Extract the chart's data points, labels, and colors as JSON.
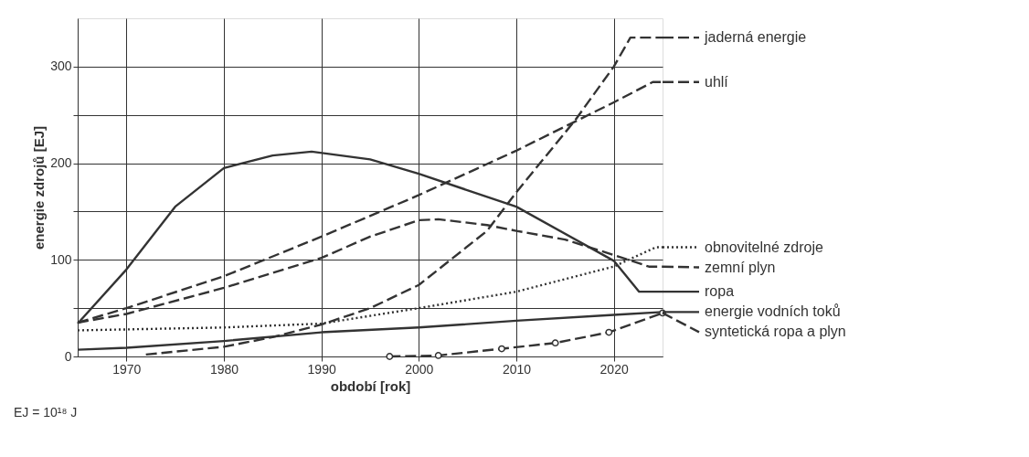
{
  "chart_data": {
    "type": "line",
    "xlabel": "období [rok]",
    "ylabel": "energie zdrojů [EJ]",
    "xlim": [
      1965,
      2025
    ],
    "xticks": [
      1970,
      1980,
      1990,
      2000,
      2010,
      2020
    ],
    "ylim": [
      0,
      350
    ],
    "yticks": [
      0,
      {
        "value": 50,
        "label": null
      },
      100,
      {
        "value": 150,
        "label": null
      },
      200,
      {
        "value": 250,
        "label": null
      },
      300
    ],
    "grid": true,
    "legend": "right",
    "annotations": [
      "EJ = 10¹⁸ J"
    ],
    "series": [
      {
        "name": "jaderná energie",
        "color": "#333333",
        "line_style": "dashed",
        "x": [
          1972,
          1980,
          1985,
          1990,
          1995,
          2000,
          2007,
          2010,
          2016,
          2020,
          2021.7,
          2025
        ],
        "values": [
          2,
          10,
          20,
          33,
          50,
          74,
          130,
          170,
          244,
          300,
          330,
          330
        ]
      },
      {
        "name": "uhlí",
        "color": "#333333",
        "line_style": "dashed",
        "x": [
          1965,
          1970,
          1980,
          1990,
          2000,
          2010,
          2020,
          2024,
          2025
        ],
        "values": [
          35,
          50,
          83,
          124,
          167,
          213,
          263,
          284,
          284
        ]
      },
      {
        "name": "obnovitelné zdroje",
        "color": "#333333",
        "line_style": "dotted",
        "x": [
          1965,
          1980,
          1990,
          2000,
          2010,
          2020,
          2024.3,
          2025
        ],
        "values": [
          27,
          30,
          34,
          50,
          67,
          93,
          113,
          113
        ]
      },
      {
        "name": "zemní plyn",
        "color": "#333333",
        "line_style": "dashed",
        "x": [
          1965,
          1970,
          1980,
          1990,
          1995,
          2000,
          2002,
          2007,
          2010,
          2015,
          2020,
          2023.6,
          2025
        ],
        "values": [
          35,
          44,
          71,
          102,
          124,
          141,
          142,
          136,
          130,
          121,
          105,
          93,
          93
        ]
      },
      {
        "name": "ropa",
        "color": "#333333",
        "line_style": "solid",
        "x": [
          1965,
          1970,
          1975,
          1980,
          1985,
          1989,
          1995,
          2000,
          2010,
          2020,
          2022.6,
          2025
        ],
        "values": [
          34,
          90,
          155,
          195,
          208,
          212,
          204,
          189,
          155,
          99,
          67,
          67
        ]
      },
      {
        "name": "energie vodních toků",
        "color": "#333333",
        "line_style": "solid",
        "x": [
          1965,
          1970,
          1980,
          1990,
          2000,
          2010,
          2020,
          2025
        ],
        "values": [
          7,
          9,
          16,
          25,
          30,
          37,
          43,
          46
        ]
      },
      {
        "name": "syntetická ropa a plyn",
        "color": "#333333",
        "line_style": "dashed",
        "marker": "circle",
        "x": [
          1997,
          2002,
          2008.5,
          2014,
          2019.5,
          2025
        ],
        "values": [
          0,
          1,
          8,
          14,
          25,
          45
        ]
      }
    ]
  }
}
